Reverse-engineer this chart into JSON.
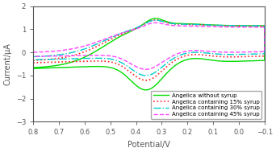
{
  "title": "",
  "xlabel": "Potential/V",
  "ylabel": "Current/μA",
  "xlim": [
    0.8,
    -0.1
  ],
  "ylim": [
    -3.0,
    2.0
  ],
  "xticks": [
    0.8,
    0.7,
    0.6,
    0.5,
    0.4,
    0.3,
    0.2,
    0.1,
    0.0,
    -0.1
  ],
  "yticks": [
    -3,
    -2,
    -1,
    0,
    1,
    2
  ],
  "background_color": "#ffffff",
  "lines": [
    {
      "label": "Angelica without syrup",
      "color": "#00dd00",
      "linestyle": "-",
      "linewidth": 1.0
    },
    {
      "label": "Angelica containing 15% syrup",
      "color": "#ff2222",
      "linestyle": ":",
      "linewidth": 1.2
    },
    {
      "label": "Angelica containing 30% syrup",
      "color": "#00cccc",
      "linestyle": "-.",
      "linewidth": 1.0
    },
    {
      "label": "Angelica containing 45% syrup",
      "color": "#ff44ff",
      "linestyle": "--",
      "linewidth": 1.0
    }
  ],
  "legend_fontsize": 5.0,
  "axis_fontsize": 7,
  "tick_fontsize": 6
}
